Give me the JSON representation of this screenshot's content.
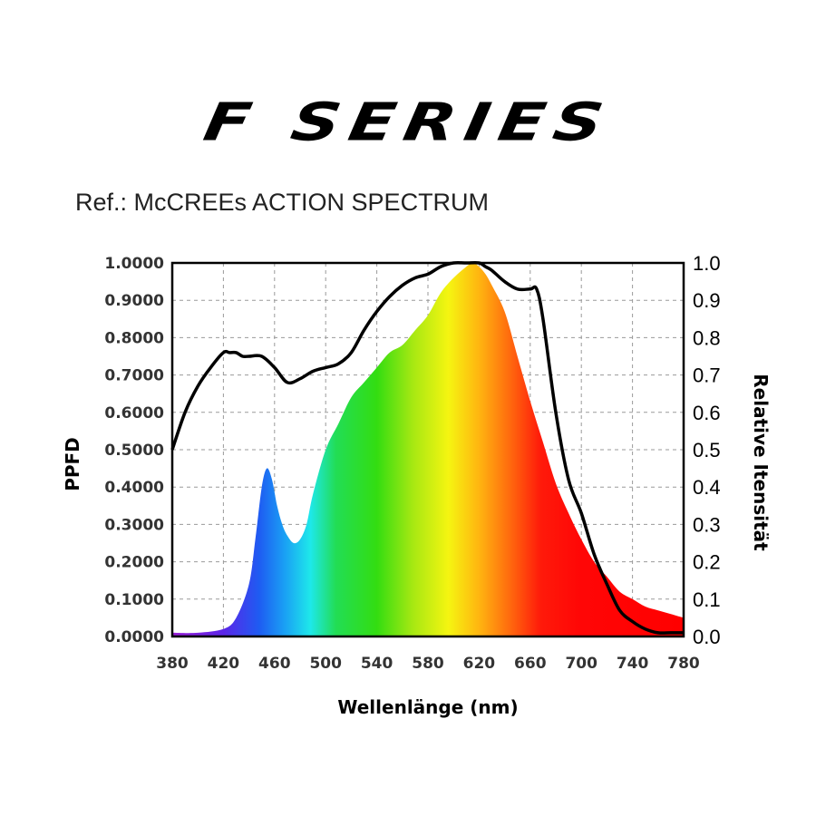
{
  "header": {
    "title": "F SERIES",
    "subtitle": "Ref.: McCREEs ACTION SPECTRUM"
  },
  "chart_data": {
    "type": "area",
    "xlabel": "Wellenlänge (nm)",
    "ylabel_left": "PPFD",
    "ylabel_right": "Relative Itensität",
    "xlim": [
      380,
      780
    ],
    "ylim_left": [
      0,
      1
    ],
    "ylim_right": [
      0,
      1
    ],
    "x_ticks": [
      "380",
      "420",
      "460",
      "500",
      "540",
      "580",
      "620",
      "660",
      "700",
      "740",
      "780"
    ],
    "y_left_ticks": [
      "0.0000",
      "0.1000",
      "0.2000",
      "0.3000",
      "0.4000",
      "0.5000",
      "0.6000",
      "0.7000",
      "0.8000",
      "0.9000",
      "1.0000"
    ],
    "y_right_ticks": [
      "0.0",
      "0.1",
      "0.2",
      "0.3",
      "0.4",
      "0.5",
      "0.6",
      "0.7",
      "0.8",
      "0.9",
      "1.0"
    ],
    "grid": true,
    "series": [
      {
        "kind": "spectrum-fill",
        "x": [
          380,
          400,
          420,
          430,
          440,
          445,
          450,
          454,
          458,
          462,
          466,
          470,
          475,
          480,
          485,
          490,
          500,
          510,
          520,
          530,
          540,
          550,
          560,
          570,
          580,
          590,
          600,
          610,
          615,
          620,
          625,
          630,
          640,
          650,
          660,
          670,
          680,
          690,
          700,
          710,
          720,
          730,
          740,
          750,
          760,
          770,
          780
        ],
        "y": [
          0.01,
          0.01,
          0.02,
          0.05,
          0.14,
          0.26,
          0.4,
          0.45,
          0.42,
          0.35,
          0.3,
          0.27,
          0.25,
          0.26,
          0.3,
          0.38,
          0.5,
          0.57,
          0.64,
          0.68,
          0.72,
          0.76,
          0.78,
          0.82,
          0.86,
          0.92,
          0.96,
          0.99,
          1.0,
          0.99,
          0.97,
          0.94,
          0.87,
          0.75,
          0.63,
          0.52,
          0.41,
          0.33,
          0.26,
          0.2,
          0.16,
          0.12,
          0.1,
          0.08,
          0.07,
          0.06,
          0.05
        ]
      },
      {
        "kind": "action-spectrum-line",
        "x": [
          380,
          390,
          400,
          410,
          420,
          425,
          430,
          435,
          440,
          450,
          460,
          470,
          480,
          490,
          500,
          510,
          520,
          530,
          540,
          550,
          560,
          570,
          580,
          590,
          600,
          610,
          620,
          625,
          630,
          640,
          650,
          660,
          665,
          670,
          680,
          690,
          700,
          710,
          720,
          730,
          740,
          750,
          760,
          770,
          780
        ],
        "y": [
          0.5,
          0.6,
          0.67,
          0.72,
          0.76,
          0.76,
          0.76,
          0.75,
          0.75,
          0.75,
          0.72,
          0.68,
          0.69,
          0.71,
          0.72,
          0.73,
          0.76,
          0.82,
          0.87,
          0.91,
          0.94,
          0.96,
          0.97,
          0.99,
          1.0,
          1.0,
          1.0,
          0.99,
          0.98,
          0.95,
          0.93,
          0.93,
          0.93,
          0.85,
          0.6,
          0.42,
          0.33,
          0.22,
          0.14,
          0.07,
          0.04,
          0.02,
          0.01,
          0.01,
          0.01
        ]
      }
    ]
  }
}
